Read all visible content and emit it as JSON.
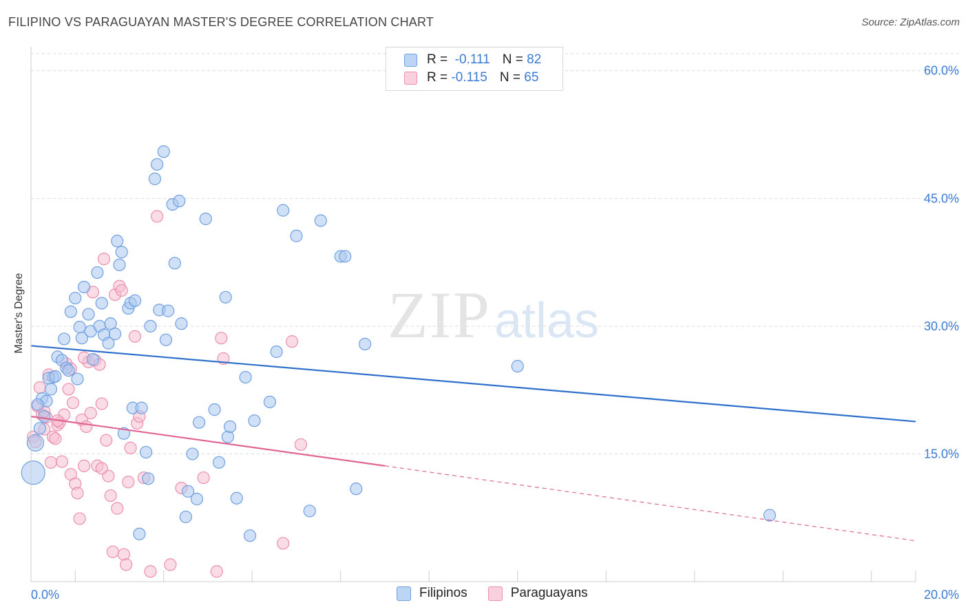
{
  "header": {
    "title": "FILIPINO VS PARAGUAYAN MASTER'S DEGREE CORRELATION CHART",
    "source": "Source: ZipAtlas.com"
  },
  "watermark": {
    "zip": "ZIP",
    "atlas": "atlas"
  },
  "legend": {
    "rows": [
      {
        "r_label": "R =",
        "r_value": "-0.111",
        "n_label": "N =",
        "n_value": "82",
        "color": "#7fb0ea"
      },
      {
        "r_label": "R =",
        "r_value": "-0.115",
        "n_label": "N =",
        "n_value": "65",
        "color": "#f2a0bc"
      }
    ]
  },
  "bottom_legend": [
    "Filipinos",
    "Paraguayans"
  ],
  "colors": {
    "blue_fill": "#a9c8f0",
    "blue_stroke": "#6f9fe0",
    "blue_line": "#2e6fcc",
    "pink_fill": "#f6c0d2",
    "pink_stroke": "#ec8fae",
    "pink_line": "#e06592",
    "grid": "#d9d9d9",
    "axis_text": "#3a7bd5"
  },
  "chart_data": {
    "type": "scatter",
    "title": "FILIPINO VS PARAGUAYAN MASTER'S DEGREE CORRELATION CHART",
    "xlabel": "",
    "ylabel": "Master's Degree",
    "xlim": [
      0,
      20
    ],
    "ylim": [
      0,
      62
    ],
    "x_tick_labels": [
      "0.0%",
      "20.0%"
    ],
    "y_ticks": [
      15,
      30,
      45,
      60
    ],
    "y_tick_labels": [
      "15.0%",
      "30.0%",
      "45.0%",
      "60.0%"
    ],
    "series": [
      {
        "name": "Filipinos",
        "r": -0.111,
        "n": 82,
        "trend": {
          "x": [
            0,
            20
          ],
          "y": [
            27.7,
            18.8
          ]
        },
        "points": [
          [
            0.1,
            16.3
          ],
          [
            0.2,
            18.0
          ],
          [
            0.25,
            21.5
          ],
          [
            0.35,
            21.2
          ],
          [
            0.45,
            22.6
          ],
          [
            0.5,
            24.0
          ],
          [
            0.6,
            26.4
          ],
          [
            0.7,
            26.0
          ],
          [
            0.75,
            28.5
          ],
          [
            0.8,
            25.1
          ],
          [
            0.85,
            24.8
          ],
          [
            0.9,
            31.7
          ],
          [
            1.0,
            33.3
          ],
          [
            1.05,
            23.8
          ],
          [
            1.1,
            29.9
          ],
          [
            1.15,
            28.6
          ],
          [
            1.2,
            34.6
          ],
          [
            1.3,
            31.4
          ],
          [
            1.35,
            29.4
          ],
          [
            1.4,
            26.1
          ],
          [
            1.5,
            36.3
          ],
          [
            1.55,
            30.0
          ],
          [
            1.6,
            32.7
          ],
          [
            1.65,
            29.0
          ],
          [
            1.75,
            28.0
          ],
          [
            1.8,
            30.3
          ],
          [
            1.9,
            29.1
          ],
          [
            1.95,
            40.0
          ],
          [
            2.0,
            37.2
          ],
          [
            2.05,
            38.7
          ],
          [
            2.1,
            17.4
          ],
          [
            2.2,
            32.1
          ],
          [
            2.25,
            32.7
          ],
          [
            2.3,
            20.4
          ],
          [
            2.35,
            33.0
          ],
          [
            2.45,
            5.6
          ],
          [
            2.5,
            20.4
          ],
          [
            2.6,
            15.2
          ],
          [
            2.65,
            12.1
          ],
          [
            2.7,
            30.0
          ],
          [
            2.8,
            47.3
          ],
          [
            2.85,
            49.0
          ],
          [
            2.9,
            31.9
          ],
          [
            3.0,
            50.5
          ],
          [
            3.05,
            28.4
          ],
          [
            3.1,
            31.8
          ],
          [
            3.2,
            44.3
          ],
          [
            3.25,
            37.4
          ],
          [
            3.35,
            44.7
          ],
          [
            3.4,
            30.3
          ],
          [
            3.5,
            7.6
          ],
          [
            3.55,
            10.6
          ],
          [
            3.65,
            15.0
          ],
          [
            3.75,
            9.7
          ],
          [
            3.8,
            18.7
          ],
          [
            3.95,
            42.6
          ],
          [
            4.15,
            20.2
          ],
          [
            4.25,
            14.0
          ],
          [
            4.4,
            33.4
          ],
          [
            4.45,
            17.0
          ],
          [
            4.5,
            18.2
          ],
          [
            4.65,
            9.8
          ],
          [
            4.85,
            24.0
          ],
          [
            4.95,
            5.4
          ],
          [
            5.05,
            18.9
          ],
          [
            5.4,
            21.1
          ],
          [
            5.55,
            27.0
          ],
          [
            5.7,
            43.6
          ],
          [
            6.0,
            40.6
          ],
          [
            6.3,
            8.3
          ],
          [
            6.55,
            42.4
          ],
          [
            7.0,
            38.2
          ],
          [
            7.1,
            38.2
          ],
          [
            7.35,
            10.9
          ],
          [
            7.55,
            27.9
          ],
          [
            11.0,
            25.3
          ],
          [
            16.7,
            7.8
          ],
          [
            0.05,
            12.8
          ],
          [
            0.3,
            19.4
          ],
          [
            0.4,
            23.9
          ],
          [
            0.55,
            24.1
          ],
          [
            0.15,
            20.8
          ]
        ]
      },
      {
        "name": "Paraguayans",
        "r": -0.115,
        "n": 65,
        "trend": {
          "x": [
            0,
            8
          ],
          "y": [
            19.4,
            13.6
          ]
        },
        "trend_dashed": {
          "x": [
            8,
            20
          ],
          "y": [
            13.6,
            4.8
          ]
        },
        "points": [
          [
            0.05,
            17.0
          ],
          [
            0.15,
            20.6
          ],
          [
            0.2,
            22.8
          ],
          [
            0.25,
            19.6
          ],
          [
            0.3,
            17.9
          ],
          [
            0.35,
            19.3
          ],
          [
            0.4,
            24.3
          ],
          [
            0.45,
            14.0
          ],
          [
            0.5,
            17.0
          ],
          [
            0.55,
            16.8
          ],
          [
            0.6,
            18.4
          ],
          [
            0.65,
            18.7
          ],
          [
            0.7,
            14.1
          ],
          [
            0.75,
            19.6
          ],
          [
            0.8,
            25.6
          ],
          [
            0.85,
            22.6
          ],
          [
            0.9,
            12.6
          ],
          [
            0.95,
            21.0
          ],
          [
            1.0,
            11.5
          ],
          [
            1.05,
            10.4
          ],
          [
            1.1,
            7.4
          ],
          [
            1.15,
            19.0
          ],
          [
            1.2,
            13.6
          ],
          [
            1.25,
            18.2
          ],
          [
            1.3,
            25.8
          ],
          [
            1.35,
            19.8
          ],
          [
            1.4,
            34.0
          ],
          [
            1.45,
            26.0
          ],
          [
            1.5,
            13.6
          ],
          [
            1.55,
            25.5
          ],
          [
            1.6,
            20.9
          ],
          [
            1.65,
            37.9
          ],
          [
            1.7,
            16.6
          ],
          [
            1.75,
            12.4
          ],
          [
            1.8,
            10.1
          ],
          [
            1.85,
            3.5
          ],
          [
            1.9,
            33.7
          ],
          [
            1.95,
            8.6
          ],
          [
            2.0,
            34.7
          ],
          [
            2.05,
            34.2
          ],
          [
            2.1,
            3.2
          ],
          [
            2.15,
            2.0
          ],
          [
            2.2,
            11.7
          ],
          [
            2.25,
            15.7
          ],
          [
            2.35,
            28.8
          ],
          [
            2.4,
            18.6
          ],
          [
            2.45,
            19.4
          ],
          [
            2.55,
            12.2
          ],
          [
            2.7,
            1.2
          ],
          [
            2.85,
            42.9
          ],
          [
            3.15,
            2.0
          ],
          [
            3.4,
            11.0
          ],
          [
            3.9,
            12.2
          ],
          [
            4.2,
            1.2
          ],
          [
            4.3,
            28.6
          ],
          [
            4.35,
            26.2
          ],
          [
            5.7,
            4.5
          ],
          [
            5.9,
            28.2
          ],
          [
            6.1,
            16.1
          ],
          [
            0.1,
            16.4
          ],
          [
            0.3,
            20.0
          ],
          [
            0.6,
            18.9
          ],
          [
            0.9,
            25.0
          ],
          [
            1.2,
            26.3
          ],
          [
            1.6,
            13.3
          ]
        ]
      }
    ]
  }
}
